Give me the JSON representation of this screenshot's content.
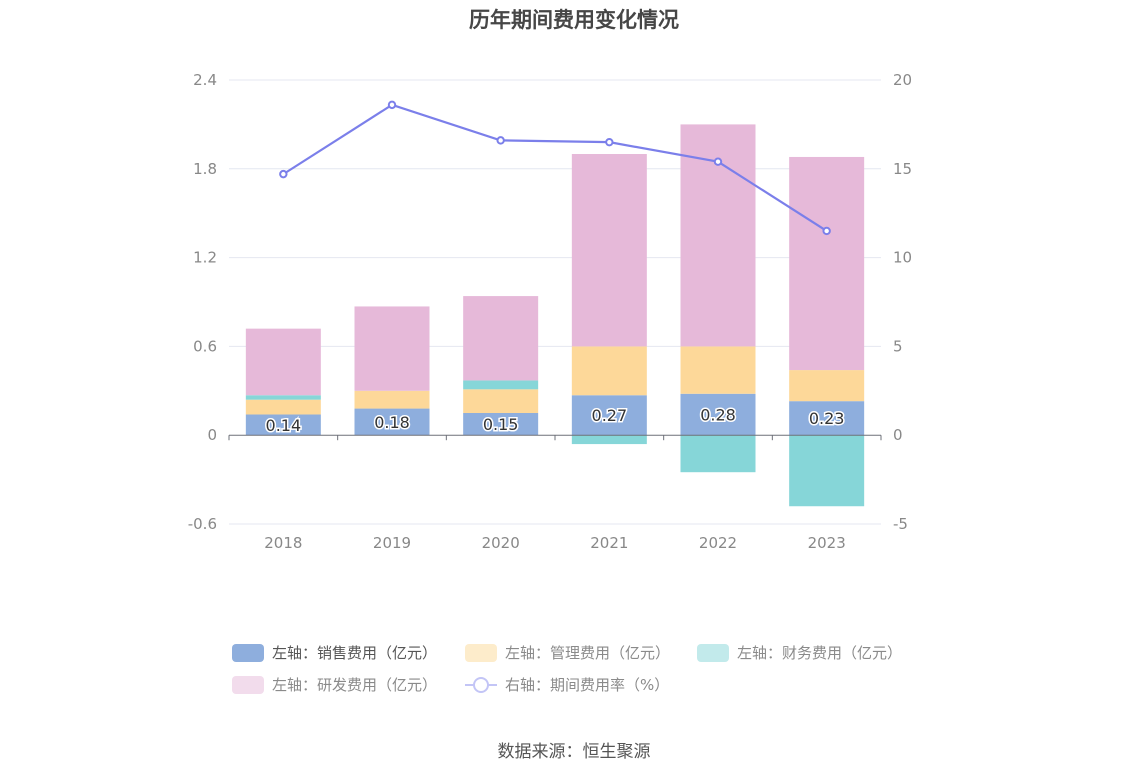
{
  "title": "历年期间费用变化情况",
  "source": "数据来源：恒生聚源",
  "chart_data": {
    "type": "bar",
    "stacked": true,
    "categories": [
      "2018",
      "2019",
      "2020",
      "2021",
      "2022",
      "2023"
    ],
    "left_axis": {
      "ticks": [
        "2.4",
        "1.8",
        "1.2",
        "0.6",
        "0",
        "-0.6"
      ],
      "ylim": [
        -0.6,
        2.4
      ]
    },
    "right_axis": {
      "ticks": [
        "20",
        "15",
        "10",
        "5",
        "0",
        "-5"
      ],
      "ylim": [
        -5,
        20
      ]
    },
    "series": [
      {
        "name": "左轴：销售费用（亿元）",
        "color": "#8eaedd",
        "axis": "left",
        "values": [
          0.14,
          0.18,
          0.15,
          0.27,
          0.28,
          0.23
        ],
        "labels": [
          "0.14",
          "0.18",
          "0.15",
          "0.27",
          "0.28",
          "0.23"
        ]
      },
      {
        "name": "左轴：管理费用（亿元）",
        "color": "#fdd899",
        "axis": "left",
        "values": [
          0.1,
          0.12,
          0.16,
          0.33,
          0.32,
          0.21
        ]
      },
      {
        "name": "左轴：财务费用（亿元）",
        "color": "#86d6d8",
        "axis": "left",
        "values": [
          0.03,
          0.0,
          0.06,
          -0.06,
          -0.25,
          -0.48
        ]
      },
      {
        "name": "左轴：研发费用（亿元）",
        "color": "#e6b9d9",
        "axis": "left",
        "values": [
          0.45,
          0.57,
          0.57,
          1.3,
          1.5,
          1.44
        ]
      },
      {
        "name": "右轴：期间费用率（%）",
        "type": "line",
        "color": "#7b7fea",
        "axis": "right",
        "values": [
          14.7,
          18.6,
          16.6,
          16.5,
          15.4,
          11.5
        ]
      }
    ]
  }
}
